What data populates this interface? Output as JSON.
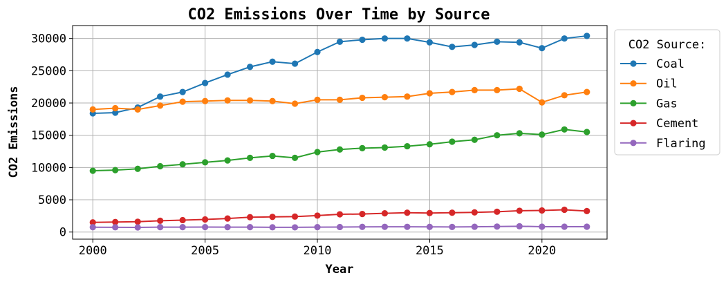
{
  "chart_data": {
    "type": "line",
    "title": "CO2 Emissions Over Time by Source",
    "xlabel": "Year",
    "ylabel": "CO2 Emissions",
    "xlim": [
      1999.1,
      2022.9
    ],
    "ylim": [
      -1100,
      32000
    ],
    "xticks": [
      2000,
      2005,
      2010,
      2015,
      2020
    ],
    "yticks": [
      0,
      5000,
      10000,
      15000,
      20000,
      25000,
      30000
    ],
    "grid": true,
    "legend": {
      "title": "CO2 Source:",
      "placement": "outside-top-right"
    },
    "x": [
      2000,
      2001,
      2002,
      2003,
      2004,
      2005,
      2006,
      2007,
      2008,
      2009,
      2010,
      2011,
      2012,
      2013,
      2014,
      2015,
      2016,
      2017,
      2018,
      2019,
      2020,
      2021,
      2022
    ],
    "series": [
      {
        "name": "Coal",
        "color": "#1f77b4",
        "values": [
          18400,
          18500,
          19300,
          21000,
          21700,
          23100,
          24400,
          25600,
          26400,
          26100,
          27900,
          29500,
          29800,
          30000,
          30000,
          29400,
          28700,
          29000,
          29500,
          29400,
          28500,
          30000,
          30400
        ]
      },
      {
        "name": "Oil",
        "color": "#ff7f0e",
        "values": [
          19000,
          19200,
          19000,
          19600,
          20200,
          20300,
          20400,
          20400,
          20300,
          19900,
          20500,
          20500,
          20800,
          20900,
          21000,
          21500,
          21700,
          22000,
          22000,
          22200,
          20100,
          21200,
          21700
        ]
      },
      {
        "name": "Gas",
        "color": "#2ca02c",
        "values": [
          9500,
          9600,
          9800,
          10200,
          10500,
          10800,
          11100,
          11500,
          11800,
          11500,
          12400,
          12800,
          13000,
          13100,
          13300,
          13600,
          14000,
          14300,
          15000,
          15300,
          15100,
          15900,
          15500
        ]
      },
      {
        "name": "Cement",
        "color": "#d62728",
        "values": [
          1500,
          1550,
          1600,
          1750,
          1850,
          1950,
          2100,
          2300,
          2350,
          2400,
          2550,
          2750,
          2800,
          2900,
          3000,
          2950,
          3000,
          3050,
          3150,
          3300,
          3350,
          3450,
          3250
        ]
      },
      {
        "name": "Flaring",
        "color": "#9467bd",
        "values": [
          750,
          740,
          720,
          760,
          760,
          770,
          760,
          760,
          740,
          730,
          760,
          780,
          800,
          810,
          810,
          800,
          790,
          820,
          850,
          900,
          830,
          830,
          830
        ]
      }
    ]
  }
}
